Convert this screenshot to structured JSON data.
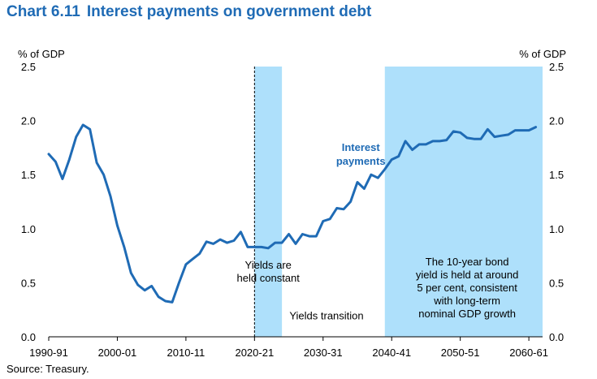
{
  "title": {
    "number": "Chart 6.11",
    "text": "Interest payments on government debt"
  },
  "source": "Source: Treasury.",
  "colors": {
    "title": "#1f6bb5",
    "line": "#1f6bb5",
    "shade": "#aee0fb",
    "axis": "#000000"
  },
  "chart_data": {
    "type": "line",
    "ylabel_left": "% of GDP",
    "ylabel_right": "% of GDP",
    "ylim": [
      0,
      2.5
    ],
    "yticks": [
      "0.0",
      "0.5",
      "1.0",
      "1.5",
      "2.0",
      "2.5"
    ],
    "xlim": [
      1990,
      2062
    ],
    "xticks": [
      {
        "x": 1990,
        "label": "1990-91"
      },
      {
        "x": 2000,
        "label": "2000-01"
      },
      {
        "x": 2010,
        "label": "2010-11"
      },
      {
        "x": 2020,
        "label": "2020-21"
      },
      {
        "x": 2030,
        "label": "2030-31"
      },
      {
        "x": 2040,
        "label": "2040-41"
      },
      {
        "x": 2050,
        "label": "2050-51"
      },
      {
        "x": 2060,
        "label": "2060-61"
      }
    ],
    "grid": false,
    "shaded_regions": [
      {
        "from": 2020,
        "to": 2024
      },
      {
        "from": 2039,
        "to": 2062
      }
    ],
    "vertical_marker": {
      "x": 2020,
      "style": "dashed"
    },
    "annotations": [
      {
        "x": 2022,
        "y": 0.63,
        "lines": [
          "Yields are",
          "held constant"
        ]
      },
      {
        "x": 2051,
        "y": 0.66,
        "lines": [
          "The 10-year bond",
          "yield is held at around",
          "5 per cent, consistent",
          "with long-term",
          "nominal GDP growth"
        ]
      },
      {
        "x": 2030.5,
        "y": 0.16,
        "lines": [
          "Yields transition"
        ]
      }
    ],
    "series": [
      {
        "name": "Interest payments",
        "label_lines": [
          "Interest",
          "payments"
        ],
        "label_pos": {
          "x": 2035.5,
          "y": 1.72
        },
        "x": [
          1990,
          1991,
          1992,
          1993,
          1994,
          1995,
          1996,
          1997,
          1998,
          1999,
          2000,
          2001,
          2002,
          2003,
          2004,
          2005,
          2006,
          2007,
          2008,
          2009,
          2010,
          2011,
          2012,
          2013,
          2014,
          2015,
          2016,
          2017,
          2018,
          2019,
          2020,
          2021,
          2022,
          2023,
          2024,
          2025,
          2026,
          2027,
          2028,
          2029,
          2030,
          2031,
          2032,
          2033,
          2034,
          2035,
          2036,
          2037,
          2038,
          2039,
          2040,
          2041,
          2042,
          2043,
          2044,
          2045,
          2046,
          2047,
          2048,
          2049,
          2050,
          2051,
          2052,
          2053,
          2054,
          2055,
          2056,
          2057,
          2058,
          2059,
          2060,
          2061
        ],
        "values": [
          1.69,
          1.62,
          1.46,
          1.64,
          1.85,
          1.96,
          1.92,
          1.61,
          1.5,
          1.3,
          1.03,
          0.83,
          0.59,
          0.48,
          0.43,
          0.47,
          0.37,
          0.33,
          0.32,
          0.5,
          0.67,
          0.72,
          0.77,
          0.88,
          0.86,
          0.9,
          0.87,
          0.89,
          0.97,
          0.83,
          0.83,
          0.83,
          0.82,
          0.87,
          0.87,
          0.95,
          0.86,
          0.95,
          0.93,
          0.93,
          1.07,
          1.09,
          1.19,
          1.18,
          1.25,
          1.43,
          1.37,
          1.5,
          1.47,
          1.55,
          1.64,
          1.67,
          1.81,
          1.73,
          1.78,
          1.78,
          1.81,
          1.81,
          1.82,
          1.9,
          1.89,
          1.84,
          1.83,
          1.83,
          1.92,
          1.85,
          1.86,
          1.87,
          1.91,
          1.91,
          1.91,
          1.94
        ]
      }
    ]
  }
}
